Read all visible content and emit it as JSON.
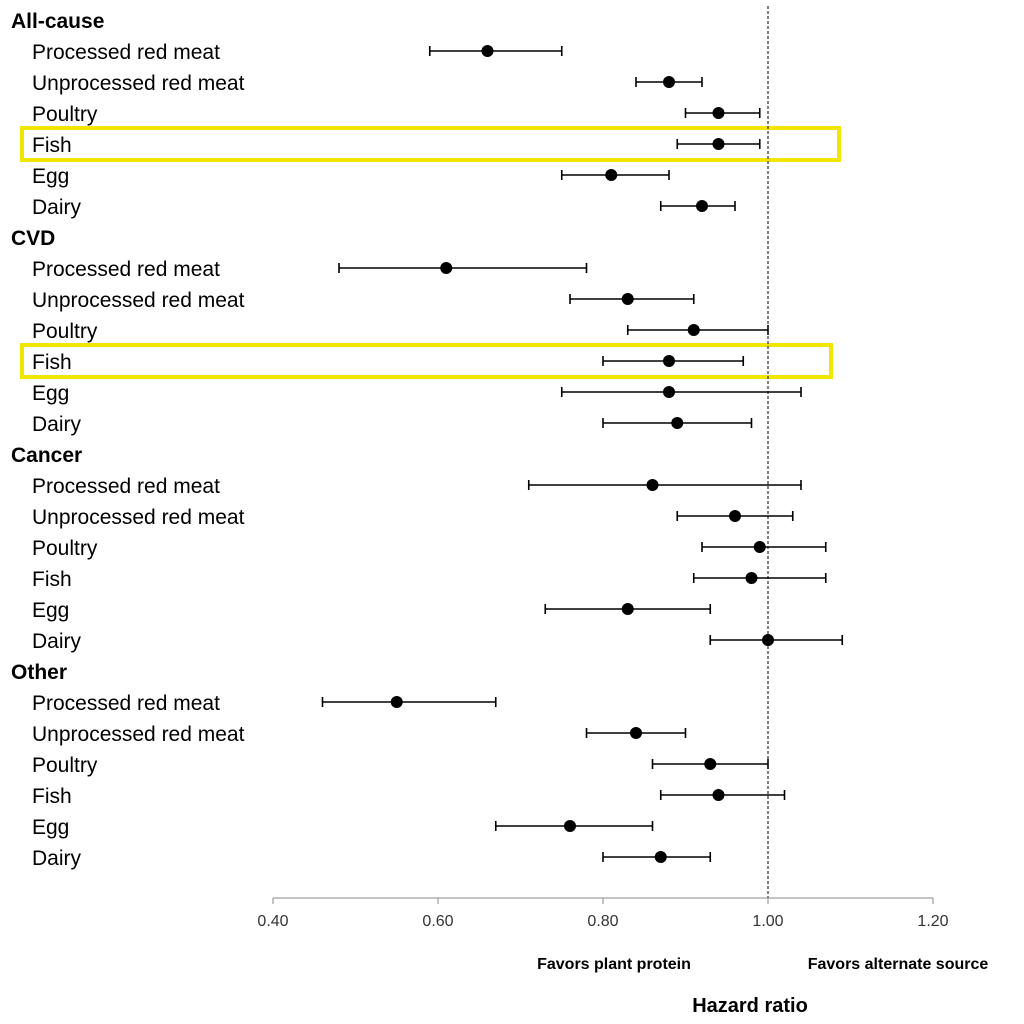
{
  "chart_data": {
    "type": "forest",
    "xlabel": "Hazard ratio",
    "xlim": [
      0.4,
      1.2
    ],
    "xticks": [
      "0.40",
      "0.60",
      "0.80",
      "1.00",
      "1.20"
    ],
    "reference_line": 1.0,
    "annotations": {
      "left": "Favors plant protein",
      "right": "Favors alternate source"
    },
    "highlight_color": "#f2e600",
    "groups": [
      {
        "name": "All-cause",
        "rows": [
          {
            "label": "Processed red meat",
            "hr": 0.66,
            "lo": 0.59,
            "hi": 0.75
          },
          {
            "label": "Unprocessed red meat",
            "hr": 0.88,
            "lo": 0.84,
            "hi": 0.92
          },
          {
            "label": "Poultry",
            "hr": 0.94,
            "lo": 0.9,
            "hi": 0.99
          },
          {
            "label": "Fish",
            "hr": 0.94,
            "lo": 0.89,
            "hi": 0.99,
            "highlight": true
          },
          {
            "label": "Egg",
            "hr": 0.81,
            "lo": 0.75,
            "hi": 0.88
          },
          {
            "label": "Dairy",
            "hr": 0.92,
            "lo": 0.87,
            "hi": 0.96
          }
        ]
      },
      {
        "name": "CVD",
        "rows": [
          {
            "label": "Processed red meat",
            "hr": 0.61,
            "lo": 0.48,
            "hi": 0.78
          },
          {
            "label": "Unprocessed red meat",
            "hr": 0.83,
            "lo": 0.76,
            "hi": 0.91
          },
          {
            "label": "Poultry",
            "hr": 0.91,
            "lo": 0.83,
            "hi": 1.0
          },
          {
            "label": "Fish",
            "hr": 0.88,
            "lo": 0.8,
            "hi": 0.97,
            "highlight": true
          },
          {
            "label": "Egg",
            "hr": 0.88,
            "lo": 0.75,
            "hi": 1.04
          },
          {
            "label": "Dairy",
            "hr": 0.89,
            "lo": 0.8,
            "hi": 0.98
          }
        ]
      },
      {
        "name": "Cancer",
        "rows": [
          {
            "label": "Processed red meat",
            "hr": 0.86,
            "lo": 0.71,
            "hi": 1.04
          },
          {
            "label": "Unprocessed red meat",
            "hr": 0.96,
            "lo": 0.89,
            "hi": 1.03
          },
          {
            "label": "Poultry",
            "hr": 0.99,
            "lo": 0.92,
            "hi": 1.07
          },
          {
            "label": "Fish",
            "hr": 0.98,
            "lo": 0.91,
            "hi": 1.07
          },
          {
            "label": "Egg",
            "hr": 0.83,
            "lo": 0.73,
            "hi": 0.93
          },
          {
            "label": "Dairy",
            "hr": 1.0,
            "lo": 0.93,
            "hi": 1.09
          }
        ]
      },
      {
        "name": "Other",
        "rows": [
          {
            "label": "Processed red meat",
            "hr": 0.55,
            "lo": 0.46,
            "hi": 0.67
          },
          {
            "label": "Unprocessed red meat",
            "hr": 0.84,
            "lo": 0.78,
            "hi": 0.9
          },
          {
            "label": "Poultry",
            "hr": 0.93,
            "lo": 0.86,
            "hi": 1.0
          },
          {
            "label": "Fish",
            "hr": 0.94,
            "lo": 0.87,
            "hi": 1.02
          },
          {
            "label": "Egg",
            "hr": 0.76,
            "lo": 0.67,
            "hi": 0.86
          },
          {
            "label": "Dairy",
            "hr": 0.87,
            "lo": 0.8,
            "hi": 0.93
          }
        ]
      }
    ]
  }
}
